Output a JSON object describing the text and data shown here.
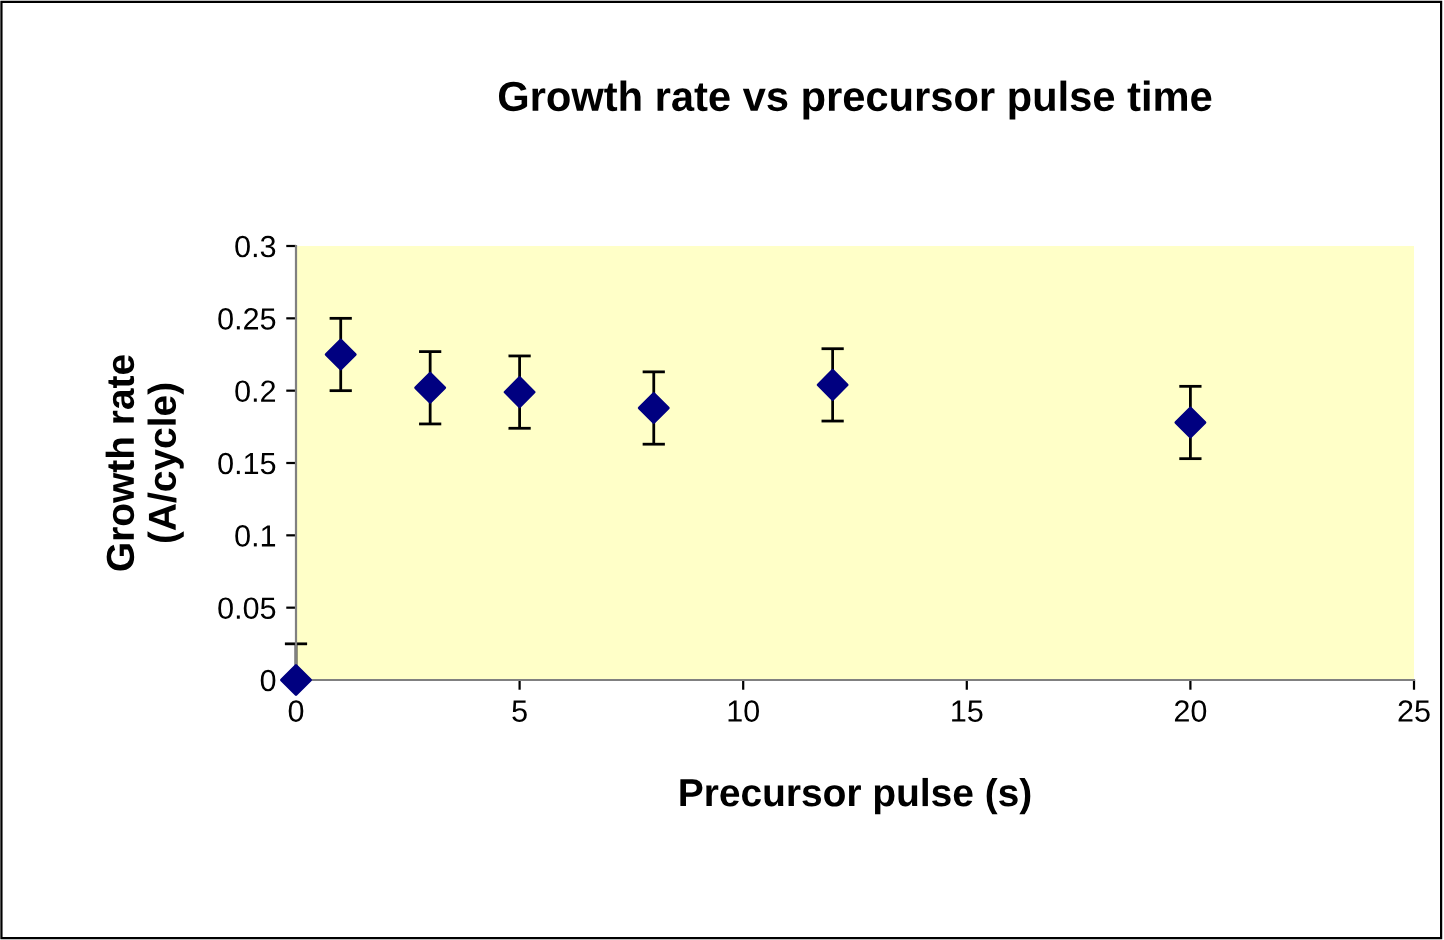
{
  "chart_data": {
    "type": "scatter",
    "title": "Growth rate vs precursor pulse time",
    "xlabel": "Precursor pulse (s)",
    "ylabel": "Growth rate\n(A/cycle)",
    "x": [
      0,
      1,
      3,
      5,
      8,
      12,
      20
    ],
    "series": [
      {
        "color": "#000080",
        "values": [
          0,
          0.225,
          0.202,
          0.199,
          0.188,
          0.204,
          0.178
        ],
        "errors": [
          [
            0,
            0.025
          ],
          0.025,
          0.025,
          0.025,
          0.025,
          0.025,
          0.025
        ]
      }
    ],
    "xlim": [
      0,
      25
    ],
    "xticks": [
      0,
      5,
      10,
      15,
      20,
      25
    ],
    "ylim": [
      0,
      0.3
    ],
    "yticks": [
      0,
      0.05,
      0.1,
      0.15,
      0.2,
      0.25,
      0.3
    ],
    "marker": "diamond",
    "grid": false,
    "legend": false
  }
}
